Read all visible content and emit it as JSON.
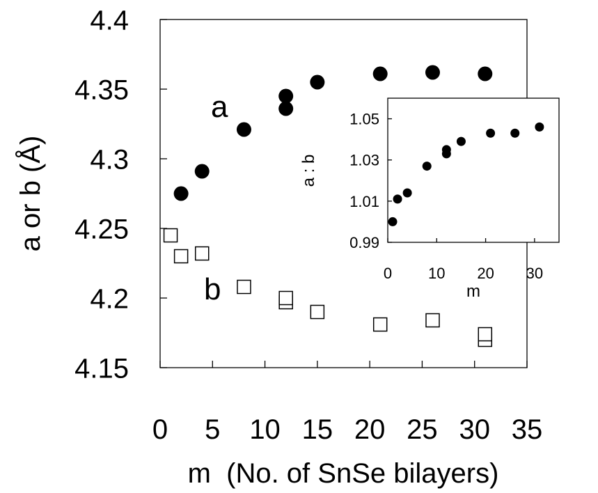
{
  "chart_data": [
    {
      "type": "scatter",
      "xlabel": "m  (No. of SnSe bilayers)",
      "ylabel": "a or b (Å)",
      "xlim": [
        0,
        35
      ],
      "ylim": [
        4.15,
        4.4
      ],
      "xticks": [
        "0",
        "5",
        "10",
        "15",
        "20",
        "25",
        "30",
        "35"
      ],
      "yticks": [
        "4.15",
        "4.2",
        "4.25",
        "4.3",
        "4.35",
        "4.4"
      ],
      "grid": false,
      "legend": "none",
      "series": [
        {
          "name": "a",
          "marker": "filled-circle",
          "color": "#000000",
          "points": [
            {
              "x": 2,
              "y": 4.275
            },
            {
              "x": 4,
              "y": 4.291
            },
            {
              "x": 8,
              "y": 4.321
            },
            {
              "x": 12,
              "y": 4.336
            },
            {
              "x": 12,
              "y": 4.345
            },
            {
              "x": 15,
              "y": 4.355
            },
            {
              "x": 21,
              "y": 4.361
            },
            {
              "x": 26,
              "y": 4.362
            },
            {
              "x": 31,
              "y": 4.361
            }
          ]
        },
        {
          "name": "b",
          "marker": "open-square",
          "color": "#000000",
          "points": [
            {
              "x": 1,
              "y": 4.245
            },
            {
              "x": 2,
              "y": 4.23
            },
            {
              "x": 4,
              "y": 4.232
            },
            {
              "x": 8,
              "y": 4.208
            },
            {
              "x": 12,
              "y": 4.197
            },
            {
              "x": 12,
              "y": 4.2
            },
            {
              "x": 15,
              "y": 4.19
            },
            {
              "x": 21,
              "y": 4.181
            },
            {
              "x": 26,
              "y": 4.184
            },
            {
              "x": 31,
              "y": 4.17
            },
            {
              "x": 31,
              "y": 4.174
            }
          ]
        }
      ]
    },
    {
      "type": "scatter",
      "xlabel": "m",
      "ylabel": "a : b",
      "xlim": [
        0,
        35
      ],
      "ylim": [
        0.99,
        1.06
      ],
      "xticks": [
        "0",
        "10",
        "20",
        "30"
      ],
      "yticks": [
        "0.99",
        "1.01",
        "1.03",
        "1.05"
      ],
      "grid": false,
      "legend": "none",
      "series": [
        {
          "marker": "filled-circle",
          "color": "#000000",
          "points": [
            {
              "x": 1,
              "y": 1.0
            },
            {
              "x": 2,
              "y": 1.011
            },
            {
              "x": 4,
              "y": 1.014
            },
            {
              "x": 8,
              "y": 1.027
            },
            {
              "x": 12,
              "y": 1.033
            },
            {
              "x": 12,
              "y": 1.035
            },
            {
              "x": 15,
              "y": 1.039
            },
            {
              "x": 21,
              "y": 1.043
            },
            {
              "x": 26,
              "y": 1.043
            },
            {
              "x": 31,
              "y": 1.046
            }
          ]
        }
      ]
    }
  ]
}
